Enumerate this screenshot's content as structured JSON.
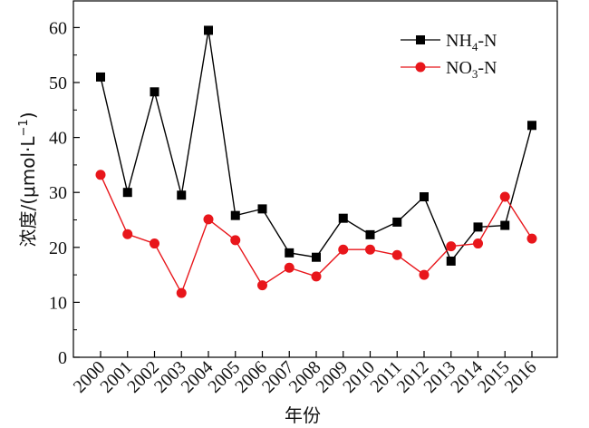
{
  "chart_data": {
    "type": "line",
    "title": "",
    "xlabel": "年份",
    "ylabel_main": "浓度/(μmol·L",
    "ylabel_sup": "−1",
    "ylabel_close": ")",
    "ylim": [
      0,
      65
    ],
    "yticks": [
      0,
      10,
      20,
      30,
      40,
      50,
      60
    ],
    "grid": false,
    "legend_position": "top-right",
    "x": [
      "2000",
      "2001",
      "2002",
      "2003",
      "2004",
      "2005",
      "2006",
      "2007",
      "2008",
      "2009",
      "2010",
      "2011",
      "2012",
      "2013",
      "2014",
      "2015",
      "2016"
    ],
    "series": [
      {
        "name_main": "NH",
        "name_sub": "4",
        "name_tail": "-N",
        "color": "#000000",
        "marker": "square",
        "values": [
          51.0,
          30.0,
          48.3,
          29.5,
          59.5,
          25.8,
          27.0,
          19.0,
          18.2,
          25.3,
          22.3,
          24.6,
          29.2,
          17.5,
          23.7,
          24.0,
          42.2
        ]
      },
      {
        "name_main": "NO",
        "name_sub": "3",
        "name_tail": "-N",
        "color": "#e8161b",
        "marker": "circle",
        "values": [
          33.2,
          22.4,
          20.7,
          11.7,
          25.1,
          21.3,
          13.1,
          16.3,
          14.7,
          19.6,
          19.6,
          18.6,
          15.0,
          20.2,
          20.7,
          29.2,
          21.6
        ]
      }
    ]
  }
}
